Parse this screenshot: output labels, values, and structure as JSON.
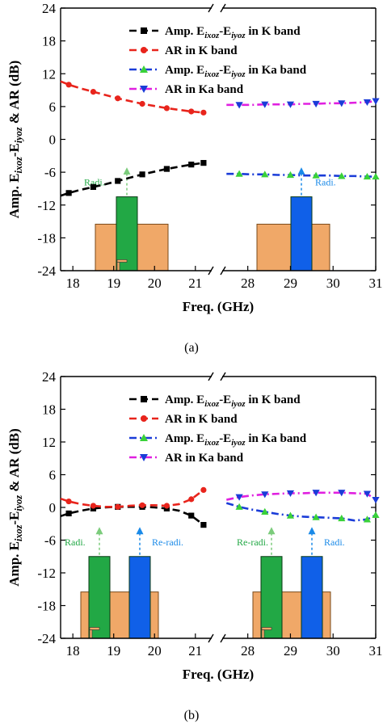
{
  "colors": {
    "k_amp": "#000000",
    "k_ar": "#e8241c",
    "ka_amp": "#1a3cd8",
    "ka_ar": "#e020e0",
    "ka_amp_marker": "#39d139",
    "ka_ar_marker": "#1a3cd8",
    "patch_green": "#22a845",
    "patch_blue": "#1060e8",
    "substrate": "#f0a868",
    "arrow_green": "#7ccc7c",
    "arrow_blue": "#1a8ae8"
  },
  "chart_data": [
    {
      "type": "line",
      "caption": "(a)",
      "xlabel": "Freq. (GHz)",
      "ylabel_parts": [
        "Amp. E",
        "ixoz",
        "-E",
        "iyoz",
        " & AR (dB)"
      ],
      "ylim": [
        -24,
        24
      ],
      "yticks": [
        24,
        18,
        12,
        6,
        0,
        -6,
        -12,
        -18,
        -24
      ],
      "k_xlim": [
        17.7,
        21.4
      ],
      "k_ticks": [
        18,
        19,
        20,
        21
      ],
      "ka_xlim": [
        27.4,
        31
      ],
      "ka_ticks": [
        28,
        29,
        30,
        31
      ],
      "axis_break": true,
      "legend": {
        "position": "top-right",
        "entries": [
          {
            "label_parts": [
              "Amp. E",
              "ixoz",
              "-E",
              "iyoz",
              " in K band"
            ],
            "series": "k_amp"
          },
          {
            "label_parts": [
              "AR in K band"
            ],
            "series": "k_ar"
          },
          {
            "label_parts": [
              "Amp. E",
              "ixoz",
              "-E",
              "iyoz",
              " in Ka band"
            ],
            "series": "ka_amp"
          },
          {
            "label_parts": [
              "AR in Ka band"
            ],
            "series": "ka_ar"
          }
        ]
      },
      "series": {
        "k_amp": {
          "band": "K",
          "marker": "square",
          "x": [
            17.7,
            17.9,
            18.2,
            18.5,
            18.8,
            19.1,
            19.4,
            19.7,
            20.0,
            20.3,
            20.6,
            20.9,
            21.2
          ],
          "y": [
            -10.3,
            -9.8,
            -9.2,
            -8.7,
            -8.2,
            -7.6,
            -7.0,
            -6.4,
            -5.9,
            -5.4,
            -5.0,
            -4.6,
            -4.3
          ]
        },
        "k_ar": {
          "band": "K",
          "marker": "circle",
          "x": [
            17.7,
            17.9,
            18.2,
            18.5,
            18.8,
            19.1,
            19.4,
            19.7,
            20.0,
            20.3,
            20.6,
            20.9,
            21.2
          ],
          "y": [
            10.6,
            10.0,
            9.3,
            8.7,
            8.1,
            7.5,
            7.0,
            6.5,
            6.1,
            5.7,
            5.4,
            5.1,
            4.9
          ]
        },
        "ka_amp": {
          "band": "Ka",
          "marker": "triangle-up",
          "x": [
            27.5,
            27.8,
            28.1,
            28.4,
            28.7,
            29.0,
            29.3,
            29.6,
            29.9,
            30.2,
            30.5,
            30.8,
            31.0
          ],
          "y": [
            -6.3,
            -6.3,
            -6.4,
            -6.4,
            -6.5,
            -6.5,
            -6.6,
            -6.6,
            -6.6,
            -6.7,
            -6.7,
            -6.8,
            -6.8
          ]
        },
        "ka_ar": {
          "band": "Ka",
          "marker": "triangle-down",
          "x": [
            27.5,
            27.8,
            28.1,
            28.4,
            28.7,
            29.0,
            29.3,
            29.6,
            29.9,
            30.2,
            30.5,
            30.8,
            31.0
          ],
          "y": [
            6.3,
            6.3,
            6.3,
            6.4,
            6.4,
            6.4,
            6.5,
            6.5,
            6.6,
            6.6,
            6.7,
            6.8,
            7.0
          ]
        }
      },
      "insets": [
        {
          "band": "K",
          "labels": [
            "Radi."
          ]
        },
        {
          "band": "Ka",
          "labels": [
            "Radi."
          ]
        }
      ]
    },
    {
      "type": "line",
      "caption": "(b)",
      "xlabel": "Freq. (GHz)",
      "ylabel_parts": [
        "Amp. E",
        "ixoz",
        "-E",
        "iyoz",
        " & AR (dB)"
      ],
      "ylim": [
        -24,
        24
      ],
      "yticks": [
        24,
        18,
        12,
        6,
        0,
        -6,
        -12,
        -18,
        -24
      ],
      "k_xlim": [
        17.7,
        21.4
      ],
      "k_ticks": [
        18,
        19,
        20,
        21
      ],
      "ka_xlim": [
        27.4,
        31
      ],
      "ka_ticks": [
        28,
        29,
        30,
        31
      ],
      "axis_break": true,
      "legend": {
        "position": "top-right",
        "entries": [
          {
            "label_parts": [
              "Amp. E",
              "ixoz",
              "-E",
              "iyoz",
              " in K band"
            ],
            "series": "k_amp"
          },
          {
            "label_parts": [
              "AR in K band"
            ],
            "series": "k_ar"
          },
          {
            "label_parts": [
              "Amp. E",
              "ixoz",
              "-E",
              "iyoz",
              " in Ka band"
            ],
            "series": "ka_amp"
          },
          {
            "label_parts": [
              "AR in Ka band"
            ],
            "series": "ka_ar"
          }
        ]
      },
      "series": {
        "k_amp": {
          "band": "K",
          "marker": "square",
          "x": [
            17.7,
            17.9,
            18.2,
            18.5,
            18.8,
            19.1,
            19.4,
            19.7,
            20.0,
            20.3,
            20.6,
            20.9,
            21.2
          ],
          "y": [
            -1.6,
            -1.1,
            -0.6,
            -0.2,
            0.0,
            0.1,
            0.1,
            0.1,
            0.0,
            -0.2,
            -0.6,
            -1.5,
            -3.2
          ]
        },
        "k_ar": {
          "band": "K",
          "marker": "circle",
          "x": [
            17.7,
            17.9,
            18.2,
            18.5,
            18.8,
            19.1,
            19.4,
            19.7,
            20.0,
            20.3,
            20.6,
            20.9,
            21.2
          ],
          "y": [
            1.6,
            1.1,
            0.6,
            0.3,
            0.1,
            0.1,
            0.3,
            0.4,
            0.4,
            0.3,
            0.6,
            1.5,
            3.2
          ]
        },
        "ka_amp": {
          "band": "Ka",
          "marker": "triangle-up",
          "x": [
            27.5,
            27.8,
            28.1,
            28.4,
            28.7,
            29.0,
            29.3,
            29.6,
            29.9,
            30.2,
            30.5,
            30.8,
            31.0
          ],
          "y": [
            0.8,
            0.1,
            -0.4,
            -0.8,
            -1.2,
            -1.5,
            -1.7,
            -1.8,
            -1.9,
            -2.0,
            -2.4,
            -2.2,
            -1.4
          ]
        },
        "ka_ar": {
          "band": "Ka",
          "marker": "triangle-down",
          "x": [
            27.5,
            27.8,
            28.1,
            28.4,
            28.7,
            29.0,
            29.3,
            29.6,
            29.9,
            30.2,
            30.5,
            30.8,
            31.0
          ],
          "y": [
            1.4,
            1.9,
            2.2,
            2.4,
            2.5,
            2.6,
            2.6,
            2.7,
            2.7,
            2.7,
            2.6,
            2.5,
            1.4
          ]
        }
      },
      "insets": [
        {
          "band": "K",
          "labels": [
            "Radi.",
            "Re-radi."
          ]
        },
        {
          "band": "Ka",
          "labels": [
            "Re-radi.",
            "Radi."
          ]
        }
      ]
    }
  ]
}
